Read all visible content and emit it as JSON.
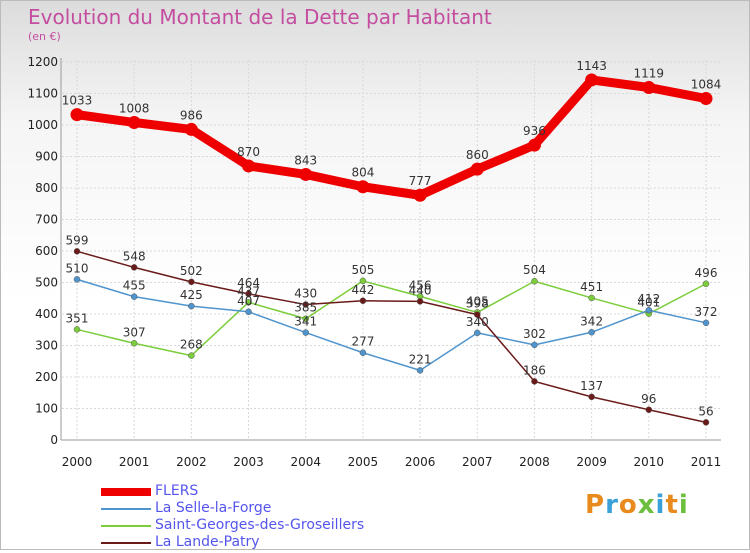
{
  "header": {
    "title": "Evolution du Montant de la Dette par Habitant",
    "subtitle": "(en €)"
  },
  "logo": {
    "text": "Proxiti",
    "colors": [
      "#e88a1c",
      "#3aa0d8",
      "#e88a1c",
      "#6cbf3c",
      "#3aa0d8",
      "#e88a1c",
      "#6cbf3c"
    ]
  },
  "chart_data": {
    "type": "line",
    "title": "Evolution du Montant de la Dette par Habitant",
    "ylabel": "(en €)",
    "xlabel": "",
    "x": [
      "2000",
      "2001",
      "2002",
      "2003",
      "2004",
      "2005",
      "2006",
      "2007",
      "2008",
      "2009",
      "2010",
      "2011"
    ],
    "ylim": [
      0,
      1200
    ],
    "yticks": [
      0,
      100,
      200,
      300,
      400,
      500,
      600,
      700,
      800,
      900,
      1000,
      1100,
      1200
    ],
    "grid": true,
    "legend": "bottom-left",
    "series": [
      {
        "name": "FLERS",
        "color": "#ee0000",
        "values": [
          1033,
          1008,
          986,
          870,
          843,
          804,
          777,
          860,
          936,
          1143,
          1119,
          1084
        ]
      },
      {
        "name": "La Selle-la-Forge",
        "color": "#4f94cd",
        "values": [
          510,
          455,
          425,
          407,
          341,
          277,
          221,
          340,
          302,
          342,
          412,
          372
        ]
      },
      {
        "name": "Saint-Georges-des-Groseillers",
        "color": "#7ccd3c",
        "values": [
          351,
          307,
          268,
          437,
          385,
          505,
          456,
          405,
          504,
          451,
          401,
          496
        ]
      },
      {
        "name": "La Lande-Patry",
        "color": "#6b1a1a",
        "values": [
          599,
          548,
          502,
          464,
          430,
          442,
          440,
          398,
          186,
          137,
          96,
          56
        ]
      }
    ]
  }
}
